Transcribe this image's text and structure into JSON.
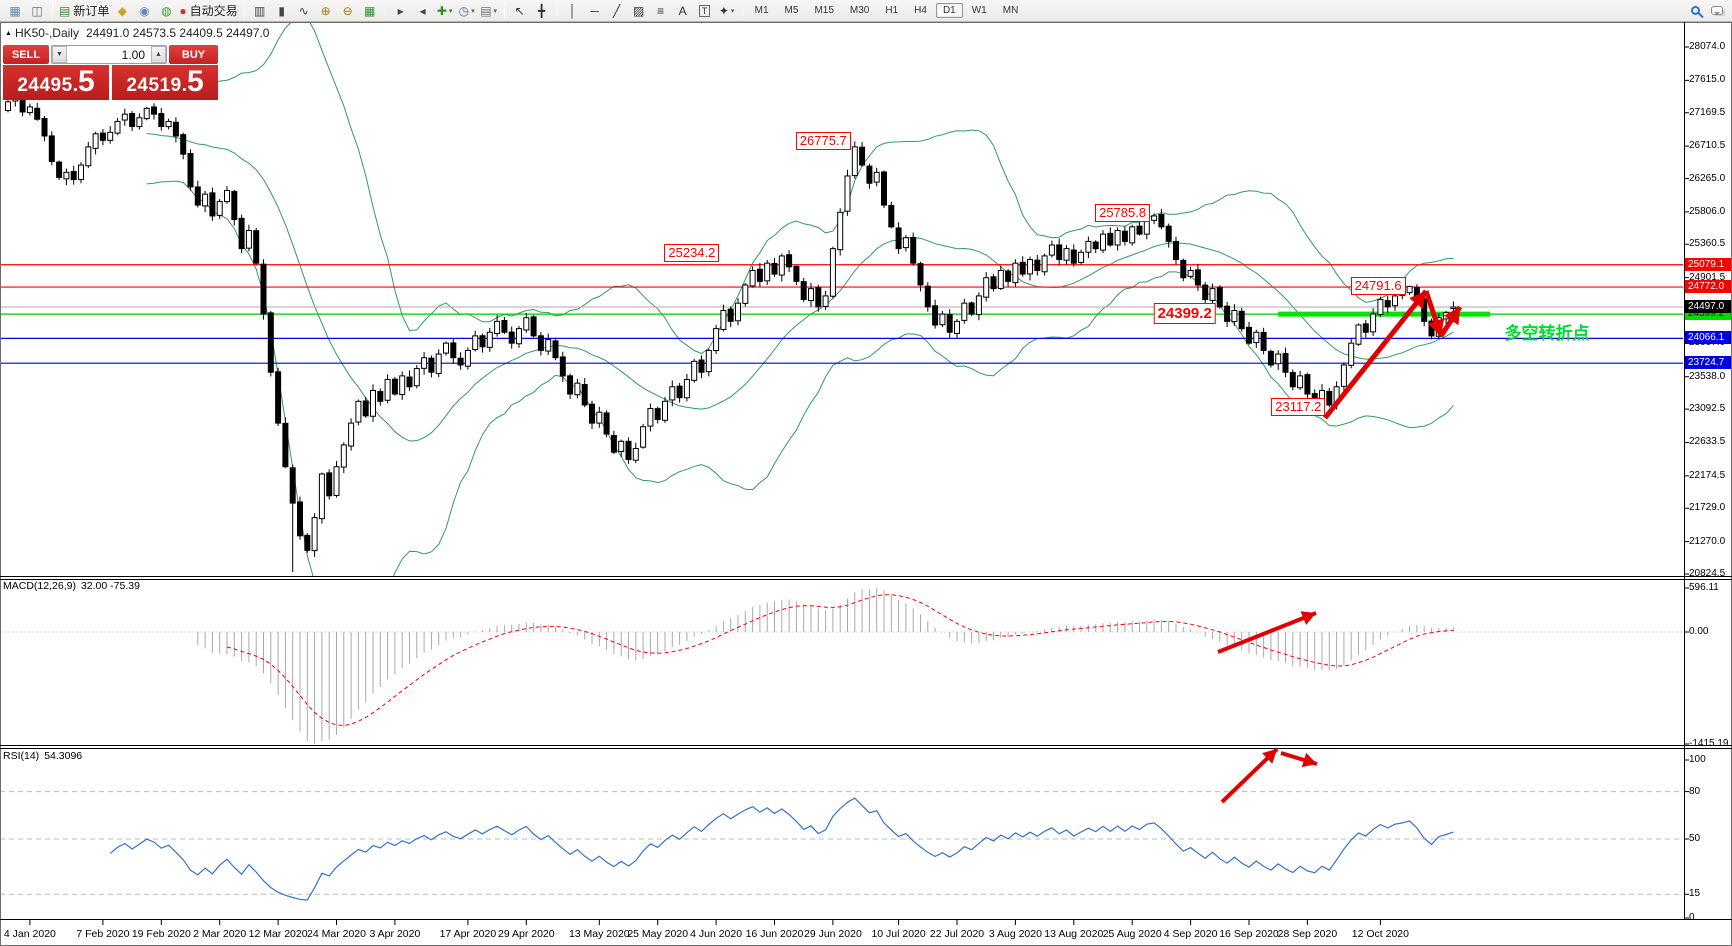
{
  "toolbar": {
    "items": [
      {
        "type": "icon",
        "name": "new-chart-icon",
        "glyph": "▦",
        "color": "#5f87ad"
      },
      {
        "type": "icon",
        "name": "profiles-icon",
        "glyph": "◫",
        "color": "#6b6b6b"
      },
      {
        "type": "sep"
      },
      {
        "type": "labeled-button",
        "name": "new-order-button",
        "glyph": "▤",
        "color": "#2f8f2f",
        "label": "新订单"
      },
      {
        "type": "icon",
        "name": "mql-editor-icon",
        "glyph": "◆",
        "color": "#c9a227"
      },
      {
        "type": "icon",
        "name": "experts-icon",
        "glyph": "◉",
        "color": "#5b84c4"
      },
      {
        "type": "icon",
        "name": "signals-icon",
        "glyph": "◍",
        "color": "#3aa03a"
      },
      {
        "type": "labeled-button",
        "name": "autotrade-button",
        "glyph": "●",
        "color": "#cc3333",
        "label": "自动交易"
      },
      {
        "type": "sep"
      },
      {
        "type": "icon",
        "name": "bar-chart-icon",
        "glyph": "▥",
        "color": "#444444"
      },
      {
        "type": "icon",
        "name": "candlestick-chart-icon",
        "glyph": "▮",
        "color": "#444444"
      },
      {
        "type": "icon",
        "name": "line-chart-icon",
        "glyph": "∿",
        "color": "#444444"
      },
      {
        "type": "icon",
        "name": "zoom-in-icon",
        "glyph": "⊕",
        "color": "#9c7c1e"
      },
      {
        "type": "icon",
        "name": "zoom-out-icon",
        "glyph": "⊖",
        "color": "#9c7c1e"
      },
      {
        "type": "icon",
        "name": "tile-windows-icon",
        "glyph": "▦",
        "color": "#2f8f2f"
      },
      {
        "type": "sep"
      },
      {
        "type": "icon",
        "name": "auto-scroll-icon",
        "glyph": "▸",
        "color": "#444444"
      },
      {
        "type": "icon",
        "name": "chart-shift-icon",
        "glyph": "◂",
        "color": "#444444"
      },
      {
        "type": "icon",
        "name": "indicators-dropdown",
        "glyph": "✚",
        "color": "#2f8f2f",
        "caret": true
      },
      {
        "type": "icon",
        "name": "periods-dropdown",
        "glyph": "◷",
        "color": "#46649c",
        "caret": true
      },
      {
        "type": "icon",
        "name": "templates-dropdown",
        "glyph": "▤",
        "color": "#6b6b6b",
        "caret": true
      },
      {
        "type": "sep"
      },
      {
        "type": "icon",
        "name": "cursor-icon",
        "glyph": "↖",
        "color": "#333333"
      },
      {
        "type": "icon",
        "name": "crosshair-icon",
        "glyph": "╋",
        "color": "#333333"
      },
      {
        "type": "sep"
      },
      {
        "type": "icon",
        "name": "vertical-line-icon",
        "glyph": "│",
        "color": "#333333"
      },
      {
        "type": "icon",
        "name": "horizontal-line-icon",
        "glyph": "─",
        "color": "#333333"
      },
      {
        "type": "icon",
        "name": "trendline-icon",
        "glyph": "╱",
        "color": "#333333"
      },
      {
        "type": "icon",
        "name": "equidistant-channel-icon",
        "glyph": "▨",
        "color": "#333333"
      },
      {
        "type": "icon",
        "name": "fibonacci-icon",
        "glyph": "≡",
        "color": "#333333"
      },
      {
        "type": "icon",
        "name": "text-icon",
        "glyph": "A",
        "color": "#333333"
      },
      {
        "type": "icon",
        "name": "label-icon",
        "glyph": "T",
        "color": "#333333",
        "boxed": true
      },
      {
        "type": "icon",
        "name": "shapes-dropdown",
        "glyph": "✦",
        "color": "#333333",
        "caret": true
      },
      {
        "type": "sep"
      },
      {
        "type": "timeframes"
      },
      {
        "type": "spacer"
      },
      {
        "type": "cssicon",
        "name": "search-icon",
        "cls": "mag"
      },
      {
        "type": "cssicon",
        "name": "chat-icon",
        "cls": "bub"
      }
    ],
    "timeframes": [
      "M1",
      "M5",
      "M15",
      "M30",
      "H1",
      "H4",
      "D1",
      "W1",
      "MN"
    ],
    "active_timeframe": "D1"
  },
  "title": {
    "symbol": "HK50-,Daily",
    "ohlc": "24491.0 24573.5 24409.5 24497.0"
  },
  "trade_panel": {
    "sell_label": "SELL",
    "buy_label": "BUY",
    "volume": "1.00",
    "sell_price": "24495",
    "sell_pip": "5",
    "buy_price": "24519",
    "buy_pip": "5"
  },
  "chart_data": {
    "type": "candlestick",
    "symbol": "HK50",
    "period": "Daily",
    "current_bar": {
      "open": 24491.0,
      "high": 24573.5,
      "low": 24409.5,
      "close": 24497.0
    },
    "price_axis": {
      "top_price": 28074.0,
      "bottom_price": 20824.5,
      "ticks": [
        "28074.0",
        "27615.0",
        "27169.5",
        "26710.5",
        "26265.0",
        "25806.0",
        "25360.5",
        "24901.5",
        "24456.0",
        "23997.0",
        "23538.0",
        "23092.5",
        "22633.5",
        "22174.5",
        "21729.0",
        "21270.0",
        "20824.5"
      ]
    },
    "closes": [
      27320,
      27380,
      27180,
      27250,
      27080,
      26850,
      26500,
      26280,
      26350,
      26250,
      26450,
      26700,
      26880,
      26790,
      26900,
      27050,
      27150,
      26980,
      27100,
      27230,
      27150,
      26980,
      27050,
      26850,
      26600,
      26150,
      25900,
      26050,
      25750,
      25950,
      26100,
      25700,
      25300,
      25550,
      25100,
      24400,
      23600,
      22900,
      22300,
      21800,
      21350,
      21150,
      21600,
      22200,
      21900,
      22300,
      22600,
      22900,
      23200,
      23000,
      23350,
      23200,
      23500,
      23300,
      23550,
      23400,
      23650,
      23800,
      23600,
      23850,
      24000,
      23800,
      23700,
      23900,
      24100,
      23950,
      24150,
      24300,
      24150,
      24000,
      24200,
      24350,
      24100,
      23900,
      24050,
      23800,
      23550,
      23300,
      23450,
      23150,
      22900,
      23050,
      22750,
      22500,
      22650,
      22400,
      22550,
      22850,
      23100,
      22950,
      23200,
      23400,
      23250,
      23500,
      23750,
      23600,
      23900,
      24200,
      24450,
      24300,
      24550,
      24800,
      25000,
      24850,
      25100,
      24950,
      25200,
      25050,
      24850,
      24600,
      24750,
      24500,
      24650,
      25300,
      25800,
      26300,
      26700,
      26450,
      26200,
      26350,
      25900,
      25600,
      25300,
      25450,
      25100,
      24800,
      24500,
      24250,
      24400,
      24150,
      24300,
      24550,
      24400,
      24650,
      24900,
      24750,
      25000,
      24850,
      25100,
      24950,
      25150,
      25000,
      25200,
      25350,
      25150,
      25300,
      25100,
      25250,
      25400,
      25300,
      25500,
      25350,
      25550,
      25400,
      25600,
      25500,
      25700,
      25750,
      25600,
      25400,
      25150,
      24900,
      25000,
      24800,
      24600,
      24750,
      24500,
      24300,
      24450,
      24200,
      24000,
      24150,
      23900,
      23700,
      23850,
      23600,
      23400,
      23550,
      23300,
      23200,
      23350,
      23150,
      23400,
      23700,
      24000,
      24250,
      24150,
      24400,
      24600,
      24500,
      24650,
      24700,
      24780,
      24600,
      24300,
      24100,
      24350,
      24420,
      24497
    ],
    "candle_overrides": {
      "39": {
        "low": 20850
      },
      "116": {
        "high": 26775.7
      },
      "157": {
        "high": 25785.8
      },
      "181": {
        "low": 23117.2
      },
      "192": {
        "high": 24791.6
      },
      "198": {
        "open": 24491.0,
        "high": 24573.5,
        "low": 24409.5,
        "close": 24497.0
      }
    },
    "bollinger": {
      "period": 20,
      "deviation": 2,
      "color": "#2E9E5B"
    },
    "date_labels": [
      {
        "text": "4 Jan 2020",
        "day": 3
      },
      {
        "text": "7 Feb 2020",
        "day": 13
      },
      {
        "text": "19 Feb 2020",
        "day": 21
      },
      {
        "text": "2 Mar 2020",
        "day": 29
      },
      {
        "text": "12 Mar 2020",
        "day": 37
      },
      {
        "text": "24 Mar 2020",
        "day": 45
      },
      {
        "text": "3 Apr 2020",
        "day": 53
      },
      {
        "text": "17 Apr 2020",
        "day": 63
      },
      {
        "text": "29 Apr 2020",
        "day": 71
      },
      {
        "text": "13 May 2020",
        "day": 81
      },
      {
        "text": "25 May 2020",
        "day": 89
      },
      {
        "text": "4 Jun 2020",
        "day": 97
      },
      {
        "text": "16 Jun 2020",
        "day": 105
      },
      {
        "text": "29 Jun 2020",
        "day": 113
      },
      {
        "text": "10 Jul 2020",
        "day": 122
      },
      {
        "text": "22 Jul 2020",
        "day": 130
      },
      {
        "text": "3 Aug 2020",
        "day": 138
      },
      {
        "text": "13 Aug 2020",
        "day": 146
      },
      {
        "text": "25 Aug 2020",
        "day": 154
      },
      {
        "text": "4 Sep 2020",
        "day": 162
      },
      {
        "text": "16 Sep 2020",
        "day": 170
      },
      {
        "text": "28 Sep 2020",
        "day": 178
      },
      {
        "text": "12 Oct 2020",
        "day": 188
      }
    ],
    "hlines": [
      {
        "price": 25079.1,
        "color": "#FF0000"
      },
      {
        "price": 24772.0,
        "color": "#FF0000"
      },
      {
        "price": 24399.2,
        "color": "#00C800"
      },
      {
        "price": 24066.1,
        "color": "#0000E8"
      },
      {
        "price": 23724.7,
        "color": "#0000E8"
      }
    ],
    "bid_line": {
      "price": 24497.0,
      "color": "#ABABAB"
    },
    "axis_tags": [
      {
        "text": "25079.1",
        "price": 25079.1,
        "bg": "#FF0000",
        "fg": "#FFFFFF"
      },
      {
        "text": "24772.0",
        "price": 24772.0,
        "bg": "#FF0000",
        "fg": "#FFFFFF"
      },
      {
        "text": "24399.2",
        "price": 24399.2,
        "bg": "#00DC00",
        "fg": "#000000"
      },
      {
        "text": "24066.1",
        "price": 24066.1,
        "bg": "#0000E8",
        "fg": "#FFFFFF"
      },
      {
        "text": "23724.7",
        "price": 23724.7,
        "bg": "#0000E8",
        "fg": "#FFFFFF"
      },
      {
        "text": "24497.0",
        "price": 24497.0,
        "bg": "#000000",
        "fg": "#FFFFFF"
      }
    ],
    "callouts": [
      {
        "text": "26775.7",
        "day": 116,
        "price": 26775.7
      },
      {
        "text": "25785.8",
        "day": 157,
        "price": 25785.8
      },
      {
        "text": "25234.2",
        "day": 98,
        "price": 25234.2
      },
      {
        "text": "24791.6",
        "day": 192,
        "price": 24791.6
      },
      {
        "text": "24399.2",
        "day": 166,
        "price": 24399.2,
        "large": true
      },
      {
        "text": "23117.2",
        "day": 181,
        "price": 23117.2
      }
    ],
    "support_zone": {
      "price": 24399.2,
      "day_start": 174,
      "day_end": 203,
      "color": "#00E400",
      "thickness": 5
    },
    "annotation": {
      "text": "多空转折点",
      "color": "#00DC32",
      "day": 205,
      "price": 24190
    },
    "arrows": {
      "color": "#E00000",
      "main": [
        {
          "pts": [
            [
              1325,
              418
            ],
            [
              1426,
              291
            ]
          ],
          "w": 5
        },
        {
          "pts": [
            [
              1426,
              291
            ],
            [
              1441,
              336
            ]
          ],
          "w": 5
        },
        {
          "pts": [
            [
              1441,
              336
            ],
            [
              1460,
              307
            ]
          ],
          "w": 5
        }
      ],
      "macd": [
        {
          "pts": [
            [
              1218,
              652
            ],
            [
              1316,
              613
            ]
          ],
          "w": 4
        }
      ],
      "rsi": [
        {
          "pts": [
            [
              1222,
              802
            ],
            [
              1277,
              749
            ]
          ],
          "w": 4
        },
        {
          "pts": [
            [
              1281,
              753
            ],
            [
              1317,
              764
            ]
          ],
          "w": 4
        }
      ]
    },
    "macd": {
      "params_label": "MACD(12,26,9)",
      "current_values": "32.00 -75.39",
      "fast": 12,
      "slow": 26,
      "signal": 9,
      "axis_ticks": [
        {
          "text": "596.11",
          "v": 596.11
        },
        {
          "text": "0.00",
          "v": 0
        },
        {
          "text": "-1415.19",
          "v": -1415.19
        }
      ],
      "hist_color": "#A9A9A9",
      "signal_color": "#FF0000"
    },
    "rsi": {
      "params_label": "RSI(14)",
      "current_value": "54.3096",
      "period": 14,
      "levels": [
        80,
        50,
        15
      ],
      "axis_ticks": [
        {
          "text": "100",
          "v": 100
        },
        {
          "text": "80",
          "v": 80
        },
        {
          "text": "50",
          "v": 50
        },
        {
          "text": "15",
          "v": 15
        },
        {
          "text": "0",
          "v": 0
        }
      ],
      "line_color": "#3373CC"
    }
  }
}
